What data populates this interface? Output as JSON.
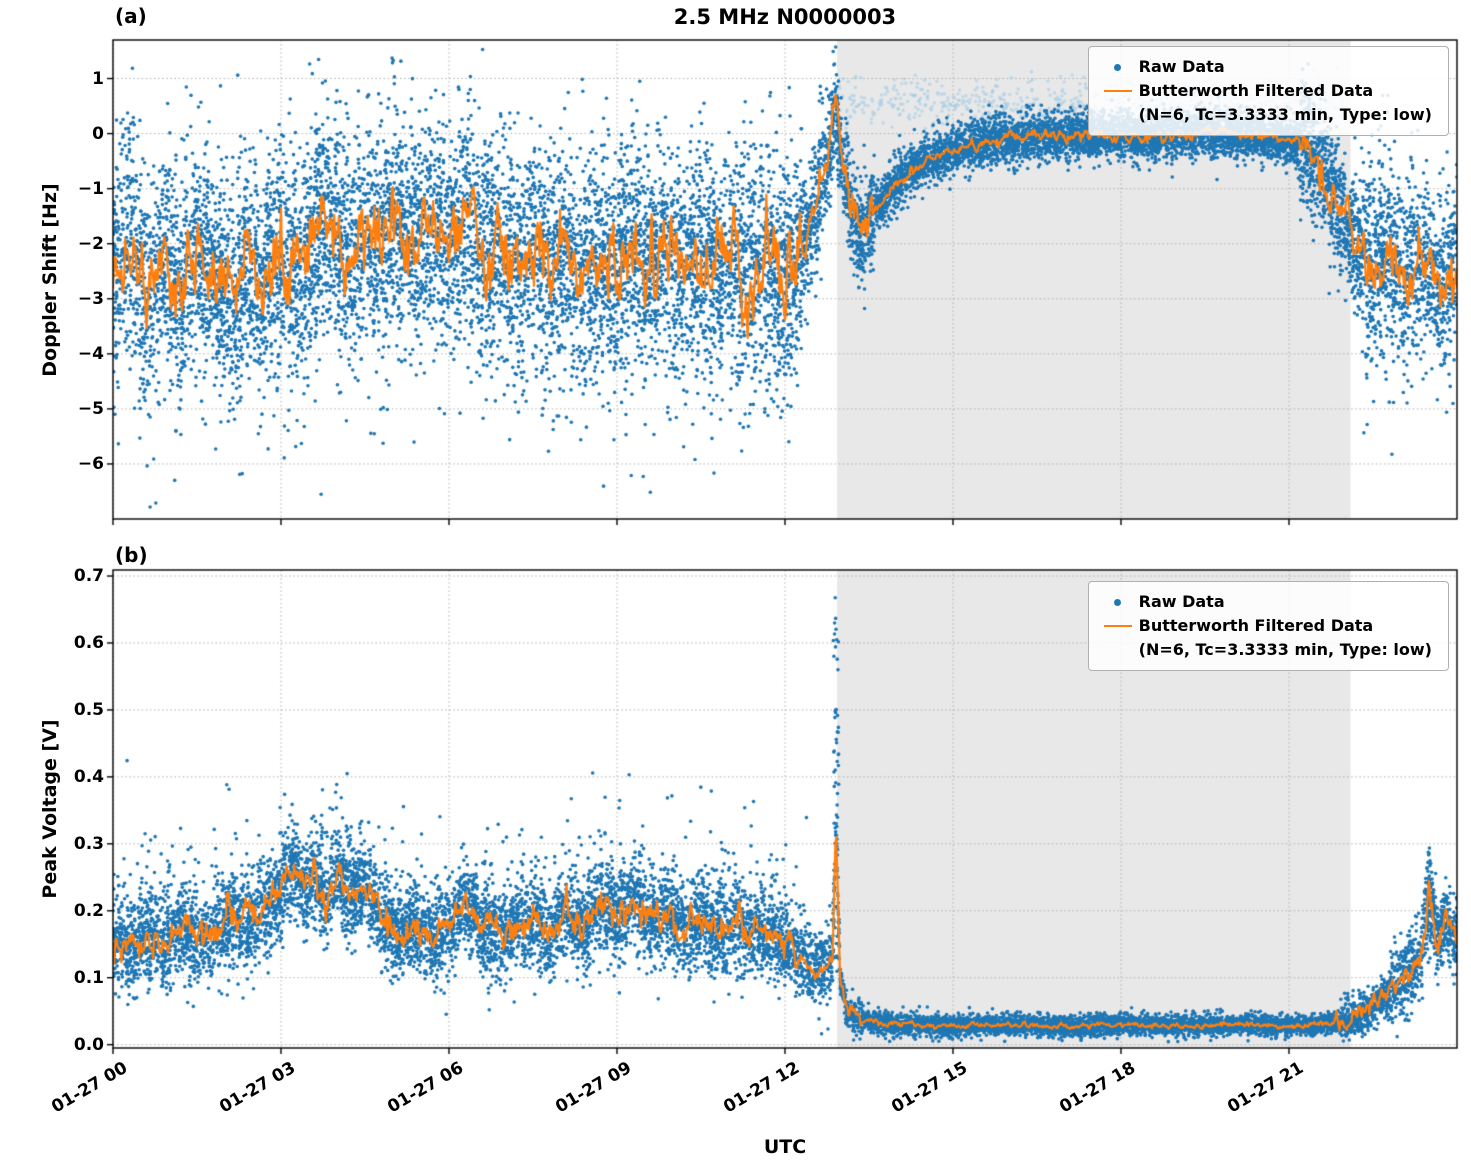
{
  "title": "2.5 MHz N0000003",
  "panel_a_label": "(a)",
  "panel_b_label": "(b)",
  "xlabel": "UTC",
  "legend": {
    "raw_label": "Raw Data",
    "filtered_label": "Butterworth Filtered Data",
    "filtered_sublabel": "(N=6, Tc=3.3333 min, Type: low)"
  },
  "colors": {
    "raw": "#1f77b4",
    "raw_light": "#a5cde6",
    "filtered": "#ff7f0e",
    "night_shade": "#e8e8e8",
    "grid": "#b0b0b0",
    "axis": "#000000"
  },
  "chart_data": [
    {
      "type": "scatter",
      "panel": "a",
      "ylabel": "Doppler Shift [Hz]",
      "ylim": [
        -7.0,
        1.7
      ],
      "yticks": [
        {
          "v": 1,
          "label": "1"
        },
        {
          "v": 0,
          "label": "0"
        },
        {
          "v": -1,
          "label": "−1"
        },
        {
          "v": -2,
          "label": "−2"
        },
        {
          "v": -3,
          "label": "−3"
        },
        {
          "v": -4,
          "label": "−4"
        },
        {
          "v": -5,
          "label": "−5"
        },
        {
          "v": -6,
          "label": "−6"
        }
      ],
      "xlim": [
        0,
        24
      ],
      "xticks_hours": [
        0,
        3,
        6,
        9,
        12,
        15,
        18,
        21
      ],
      "xtick_labels": [
        "01-27 00",
        "01-27 03",
        "01-27 06",
        "01-27 09",
        "01-27 12",
        "01-27 15",
        "01-27 18",
        "01-27 21"
      ],
      "show_x_labels": false,
      "grid": true,
      "legend_position": "upper right",
      "night_span_hours": [
        12.93,
        22.1
      ],
      "series": [
        {
          "name": "Raw Data",
          "type": "scatter",
          "color_key": "raw"
        },
        {
          "name": "Butterworth Filtered Data (N=6, Tc=3.3333 min, Type: low)",
          "type": "line",
          "color_key": "filtered"
        }
      ],
      "trend": [
        [
          0,
          -2.6
        ],
        [
          0.3,
          -1.9
        ],
        [
          0.6,
          -3.1
        ],
        [
          0.9,
          -2.2
        ],
        [
          1.2,
          -2.9
        ],
        [
          1.5,
          -2.1
        ],
        [
          1.8,
          -2.6
        ],
        [
          2.1,
          -3.0
        ],
        [
          2.4,
          -2.3
        ],
        [
          2.7,
          -2.7
        ],
        [
          3.0,
          -2.1
        ],
        [
          3.3,
          -2.6
        ],
        [
          3.6,
          -1.9
        ],
        [
          3.9,
          -1.5
        ],
        [
          4.2,
          -2.2
        ],
        [
          4.5,
          -1.7
        ],
        [
          4.8,
          -2.1
        ],
        [
          5.1,
          -1.5
        ],
        [
          5.4,
          -1.9
        ],
        [
          5.7,
          -1.6
        ],
        [
          6.0,
          -1.8
        ],
        [
          6.3,
          -1.4
        ],
        [
          6.6,
          -2.1
        ],
        [
          6.9,
          -1.8
        ],
        [
          7.2,
          -2.3
        ],
        [
          7.5,
          -2.0
        ],
        [
          7.8,
          -2.5
        ],
        [
          8.1,
          -2.1
        ],
        [
          8.4,
          -2.6
        ],
        [
          8.7,
          -2.2
        ],
        [
          9.0,
          -2.5
        ],
        [
          9.3,
          -2.0
        ],
        [
          9.6,
          -2.4
        ],
        [
          9.9,
          -2.1
        ],
        [
          10.2,
          -2.5
        ],
        [
          10.5,
          -2.2
        ],
        [
          10.8,
          -2.6
        ],
        [
          11.1,
          -2.2
        ],
        [
          11.4,
          -2.7
        ],
        [
          11.7,
          -2.3
        ],
        [
          12.0,
          -2.6
        ],
        [
          12.2,
          -2.3
        ],
        [
          12.4,
          -1.8
        ],
        [
          12.6,
          -1.2
        ],
        [
          12.8,
          -0.3
        ],
        [
          12.9,
          0.45
        ],
        [
          13.05,
          -0.6
        ],
        [
          13.2,
          -1.5
        ],
        [
          13.35,
          -1.9
        ],
        [
          13.6,
          -1.4
        ],
        [
          13.9,
          -1.0
        ],
        [
          14.2,
          -0.7
        ],
        [
          14.6,
          -0.45
        ],
        [
          15.0,
          -0.3
        ],
        [
          15.5,
          -0.15
        ],
        [
          16.0,
          -0.1
        ],
        [
          16.5,
          -0.05
        ],
        [
          17.0,
          -0.05
        ],
        [
          17.5,
          0.0
        ],
        [
          18.0,
          0.0
        ],
        [
          18.5,
          -0.05
        ],
        [
          19.0,
          0.0
        ],
        [
          19.5,
          0.05
        ],
        [
          20.0,
          0.0
        ],
        [
          20.5,
          -0.05
        ],
        [
          21.0,
          -0.1
        ],
        [
          21.3,
          -0.2
        ],
        [
          21.6,
          -0.7
        ],
        [
          21.9,
          -1.4
        ],
        [
          22.2,
          -2.1
        ],
        [
          22.5,
          -2.5
        ],
        [
          22.8,
          -2.1
        ],
        [
          23.1,
          -2.7
        ],
        [
          23.4,
          -2.2
        ],
        [
          23.7,
          -2.9
        ],
        [
          24,
          -2.4
        ]
      ],
      "raw_count": 15000,
      "seed": 101,
      "raw_noise_sd": [
        [
          0,
          12.3,
          1.05
        ],
        [
          12.3,
          12.9,
          0.6
        ],
        [
          12.9,
          13.6,
          0.45
        ],
        [
          13.6,
          21.2,
          0.22
        ],
        [
          21.2,
          22.3,
          0.55
        ],
        [
          22.3,
          24,
          0.85
        ]
      ],
      "line_wiggle_amp": [
        [
          0,
          12.3,
          0.62
        ],
        [
          12.3,
          13.6,
          0.3
        ],
        [
          13.6,
          21.2,
          0.09
        ],
        [
          21.2,
          22.3,
          0.35
        ],
        [
          22.3,
          24,
          0.55
        ]
      ],
      "tails": [
        {
          "dir": "down",
          "prob": 0.07,
          "scale": 1.15,
          "ranges": [
            [
              0,
              12.5
            ],
            [
              22.2,
              24
            ]
          ]
        }
      ],
      "upper_scatter": {
        "t_range": [
          12.85,
          21.95
        ],
        "center": 0.58,
        "sd": 0.21,
        "count": 650
      },
      "clusters": [
        {
          "t_range": [
            4.96,
            5.02
          ],
          "y_range": [
            1.25,
            1.42
          ],
          "count": 3
        },
        {
          "t_range": [
            12.6,
            12.8
          ],
          "y_range": [
            0.5,
            0.95
          ],
          "count": 8
        }
      ]
    },
    {
      "type": "scatter",
      "panel": "b",
      "ylabel": "Peak Voltage [V]",
      "ylim": [
        -0.005,
        0.709
      ],
      "yticks": [
        {
          "v": 0.7,
          "label": "0.7"
        },
        {
          "v": 0.6,
          "label": "0.6"
        },
        {
          "v": 0.5,
          "label": "0.5"
        },
        {
          "v": 0.4,
          "label": "0.4"
        },
        {
          "v": 0.3,
          "label": "0.3"
        },
        {
          "v": 0.2,
          "label": "0.2"
        },
        {
          "v": 0.1,
          "label": "0.1"
        },
        {
          "v": 0.0,
          "label": "0.0"
        }
      ],
      "xlim": [
        0,
        24
      ],
      "xticks_hours": [
        0,
        3,
        6,
        9,
        12,
        15,
        18,
        21
      ],
      "xtick_labels": [
        "01-27 00",
        "01-27 03",
        "01-27 06",
        "01-27 09",
        "01-27 12",
        "01-27 15",
        "01-27 18",
        "01-27 21"
      ],
      "show_x_labels": true,
      "grid": true,
      "legend_position": "upper right",
      "night_span_hours": [
        12.93,
        22.1
      ],
      "series": [
        {
          "name": "Raw Data",
          "type": "scatter",
          "color_key": "raw"
        },
        {
          "name": "Butterworth Filtered Data (N=6, Tc=3.3333 min, Type: low)",
          "type": "line",
          "color_key": "filtered"
        }
      ],
      "trend": [
        [
          0,
          0.155
        ],
        [
          0.3,
          0.145
        ],
        [
          0.6,
          0.16
        ],
        [
          0.9,
          0.15
        ],
        [
          1.2,
          0.17
        ],
        [
          1.5,
          0.155
        ],
        [
          1.8,
          0.165
        ],
        [
          2.1,
          0.19
        ],
        [
          2.4,
          0.175
        ],
        [
          2.7,
          0.21
        ],
        [
          3.0,
          0.23
        ],
        [
          3.2,
          0.27
        ],
        [
          3.4,
          0.22
        ],
        [
          3.6,
          0.25
        ],
        [
          3.8,
          0.21
        ],
        [
          4.0,
          0.26
        ],
        [
          4.2,
          0.22
        ],
        [
          4.5,
          0.24
        ],
        [
          4.8,
          0.19
        ],
        [
          5.1,
          0.16
        ],
        [
          5.4,
          0.18
        ],
        [
          5.7,
          0.155
        ],
        [
          6.0,
          0.17
        ],
        [
          6.3,
          0.21
        ],
        [
          6.6,
          0.175
        ],
        [
          6.9,
          0.16
        ],
        [
          7.2,
          0.175
        ],
        [
          7.5,
          0.19
        ],
        [
          7.8,
          0.165
        ],
        [
          8.1,
          0.2
        ],
        [
          8.4,
          0.17
        ],
        [
          8.7,
          0.21
        ],
        [
          9.0,
          0.185
        ],
        [
          9.3,
          0.22
        ],
        [
          9.6,
          0.18
        ],
        [
          9.9,
          0.2
        ],
        [
          10.2,
          0.165
        ],
        [
          10.5,
          0.19
        ],
        [
          10.8,
          0.165
        ],
        [
          11.1,
          0.185
        ],
        [
          11.4,
          0.16
        ],
        [
          11.7,
          0.17
        ],
        [
          12.0,
          0.145
        ],
        [
          12.3,
          0.125
        ],
        [
          12.55,
          0.11
        ],
        [
          12.75,
          0.12
        ],
        [
          12.85,
          0.13
        ],
        [
          12.91,
          0.34
        ],
        [
          12.98,
          0.1
        ],
        [
          13.1,
          0.05
        ],
        [
          13.3,
          0.04
        ],
        [
          13.6,
          0.033
        ],
        [
          14,
          0.03
        ],
        [
          15,
          0.028
        ],
        [
          16,
          0.03
        ],
        [
          17,
          0.027
        ],
        [
          18,
          0.03
        ],
        [
          19,
          0.028
        ],
        [
          20,
          0.03
        ],
        [
          21,
          0.028
        ],
        [
          21.6,
          0.03
        ],
        [
          22.0,
          0.035
        ],
        [
          22.4,
          0.05
        ],
        [
          22.8,
          0.08
        ],
        [
          23.1,
          0.1
        ],
        [
          23.35,
          0.13
        ],
        [
          23.5,
          0.24
        ],
        [
          23.65,
          0.15
        ],
        [
          23.8,
          0.19
        ],
        [
          24,
          0.16
        ]
      ],
      "raw_count": 13000,
      "seed": 202,
      "raw_noise_sd": [
        [
          0,
          12.3,
          0.034
        ],
        [
          12.3,
          12.95,
          0.028
        ],
        [
          12.95,
          13.4,
          0.014
        ],
        [
          13.4,
          21.9,
          0.0075
        ],
        [
          21.9,
          22.8,
          0.015
        ],
        [
          22.8,
          24,
          0.028
        ]
      ],
      "line_wiggle_amp": [
        [
          0,
          12.3,
          0.022
        ],
        [
          12.3,
          13.4,
          0.012
        ],
        [
          13.4,
          21.8,
          0.0035
        ],
        [
          21.8,
          23.0,
          0.012
        ],
        [
          23.0,
          24,
          0.02
        ]
      ],
      "tails": [
        {
          "dir": "up",
          "prob": 0.08,
          "scale": 0.07,
          "ranges": [
            [
              0,
              12.4
            ]
          ]
        }
      ],
      "clusters": [
        {
          "t_range": [
            12.86,
            12.97
          ],
          "y_range": [
            0.08,
            0.67
          ],
          "count": 55
        },
        {
          "t_range": [
            23.43,
            23.56
          ],
          "y_range": [
            0.12,
            0.27
          ],
          "count": 25
        }
      ],
      "y_floor": 0.004
    }
  ]
}
